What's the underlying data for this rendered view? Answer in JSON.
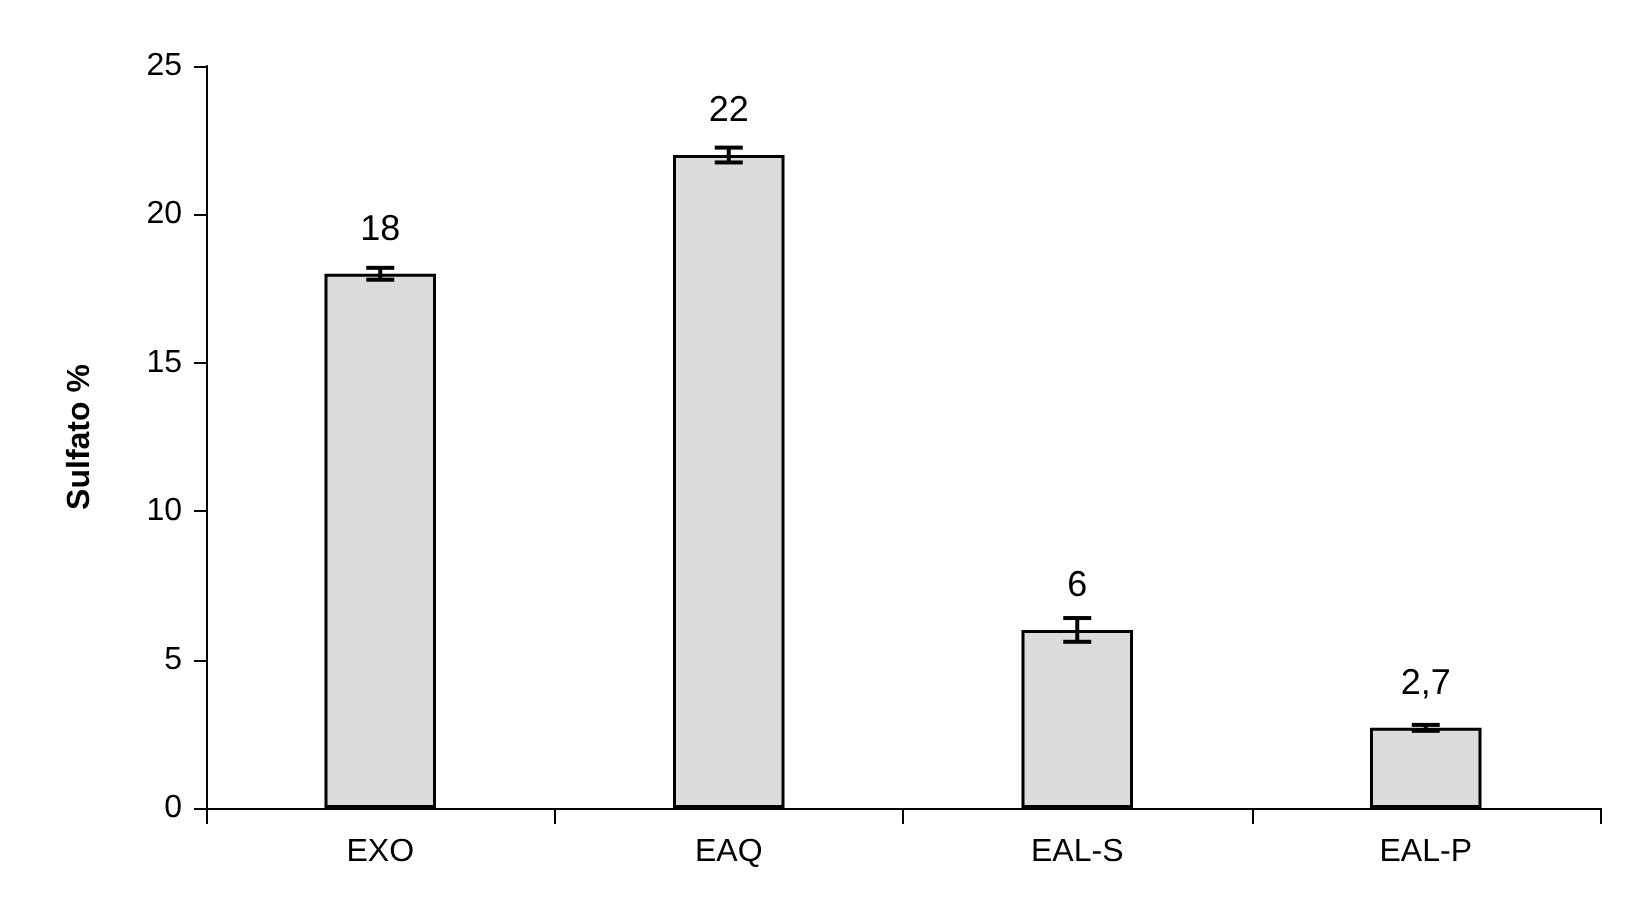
{
  "chart_data": {
    "type": "bar",
    "ylabel": "Sulfato %",
    "categories": [
      "EXO",
      "EAQ",
      "EAL-S",
      "EAL-P"
    ],
    "values": [
      18,
      22,
      6,
      2.7
    ],
    "value_labels": [
      "18",
      "22",
      "6",
      "2,7"
    ],
    "errors": [
      0.2,
      0.25,
      0.4,
      0.1
    ],
    "color": "#dcdcdc",
    "ylim": [
      0,
      25
    ],
    "yticks": [
      0,
      5,
      10,
      15,
      20,
      25
    ],
    "grid": false
  }
}
